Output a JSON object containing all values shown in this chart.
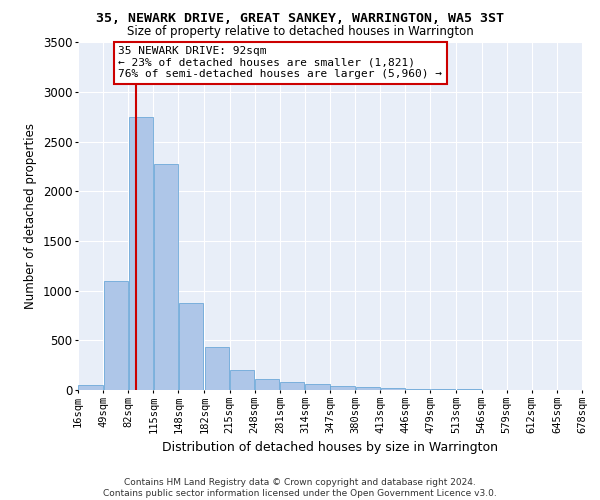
{
  "title": "35, NEWARK DRIVE, GREAT SANKEY, WARRINGTON, WA5 3ST",
  "subtitle": "Size of property relative to detached houses in Warrington",
  "xlabel": "Distribution of detached houses by size in Warrington",
  "ylabel": "Number of detached properties",
  "footer_line1": "Contains HM Land Registry data © Crown copyright and database right 2024.",
  "footer_line2": "Contains public sector information licensed under the Open Government Licence v3.0.",
  "annotation_title": "35 NEWARK DRIVE: 92sqm",
  "annotation_line1": "← 23% of detached houses are smaller (1,821)",
  "annotation_line2": "76% of semi-detached houses are larger (5,960) →",
  "property_size": 92,
  "bin_edges": [
    16,
    49,
    82,
    115,
    148,
    182,
    215,
    248,
    281,
    314,
    347,
    380,
    413,
    446,
    479,
    513,
    546,
    579,
    612,
    645,
    678
  ],
  "bar_heights": [
    55,
    1100,
    2750,
    2280,
    880,
    430,
    205,
    110,
    80,
    60,
    45,
    30,
    20,
    15,
    10,
    7,
    5,
    3,
    2,
    2
  ],
  "bar_color": "#aec6e8",
  "bar_edge_color": "#5a9fd4",
  "line_color": "#cc0000",
  "annotation_box_color": "#ffffff",
  "annotation_box_edge": "#cc0000",
  "background_color": "#e8eef8",
  "ylim": [
    0,
    3500
  ],
  "yticks": [
    0,
    500,
    1000,
    1500,
    2000,
    2500,
    3000,
    3500
  ]
}
